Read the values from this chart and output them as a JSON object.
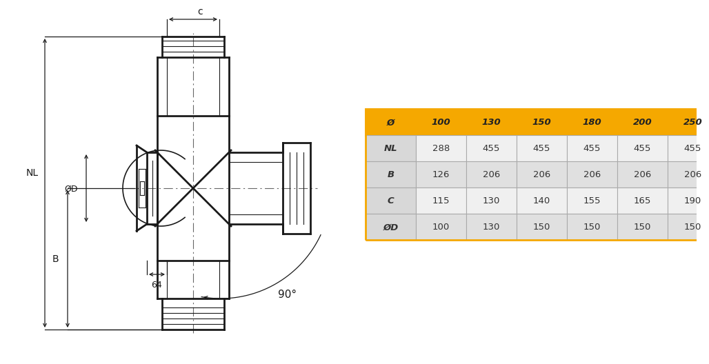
{
  "bg_color": "#ffffff",
  "table": {
    "header_row": [
      "Ø",
      "100",
      "130",
      "150",
      "180",
      "200",
      "250"
    ],
    "rows": [
      [
        "NL",
        "288",
        "455",
        "455",
        "455",
        "455",
        "455"
      ],
      [
        "B",
        "126",
        "206",
        "206",
        "206",
        "206",
        "206"
      ],
      [
        "C",
        "115",
        "130",
        "140",
        "155",
        "165",
        "190"
      ],
      [
        "ØD",
        "100",
        "130",
        "150",
        "150",
        "150",
        "150"
      ]
    ],
    "header_bg": "#f5a800",
    "header_text": "#222222",
    "row_bg_light": "#f0f0f0",
    "row_bg_mid": "#e0e0e0",
    "label_col_bg": "#d8d8d8",
    "border_color": "#f5a800",
    "text_color": "#333333"
  },
  "drawing": {
    "line_color": "#1a1a1a",
    "dim_color": "#1a1a1a",
    "center_line_color": "#666666"
  }
}
